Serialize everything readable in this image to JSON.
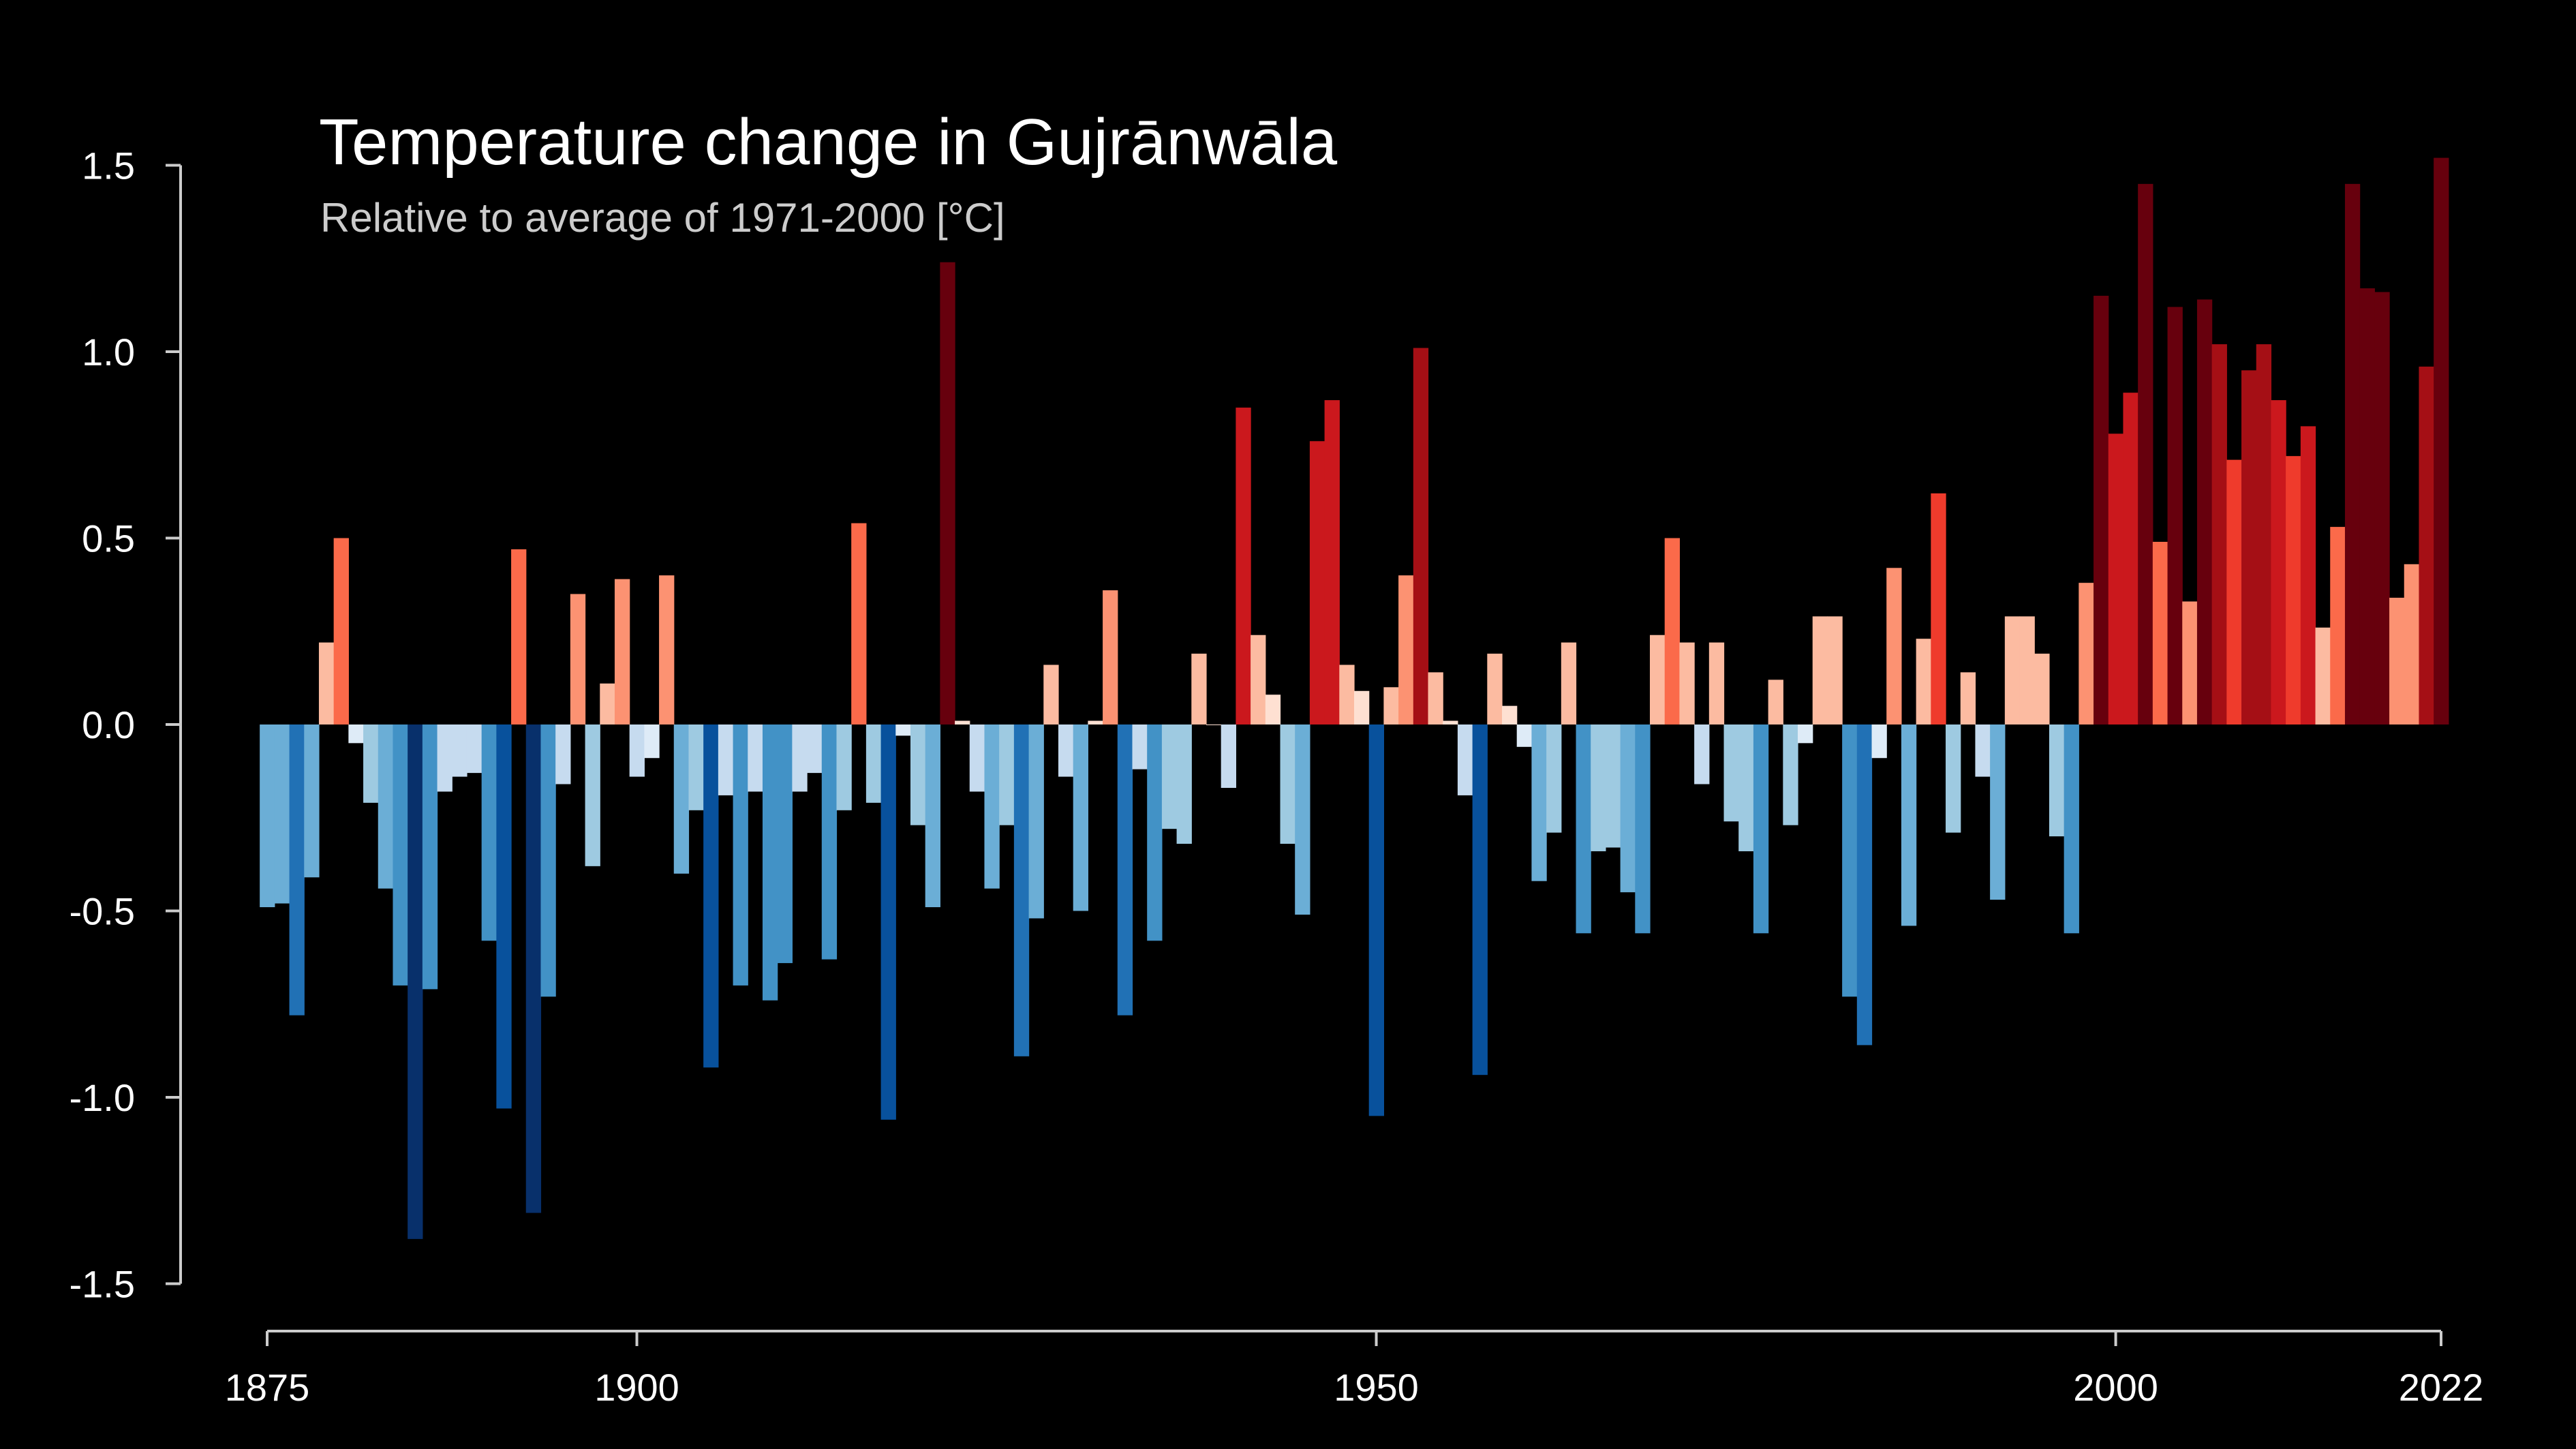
{
  "chart_data": {
    "type": "bar",
    "title": "Temperature change in Gujrānwāla",
    "subtitle": "Relative to average of 1971-2000  [°C]",
    "xlabel": "",
    "ylabel": "",
    "x_start": 1875,
    "x_end": 2022,
    "ylim": [
      -1.5,
      1.5
    ],
    "yticks": [
      -1.5,
      -1.0,
      -0.5,
      0.0,
      0.5,
      1.0,
      1.5
    ],
    "ytick_labels": [
      "-1.5",
      "-1.0",
      "-0.5",
      "0.0",
      "0.5",
      "1.0",
      "1.5"
    ],
    "xticks": [
      1875,
      1900,
      1950,
      2000,
      2022
    ],
    "xtick_labels": [
      "1875",
      "1900",
      "1950",
      "2000",
      "2022"
    ],
    "grid": false,
    "legend": "none",
    "colormap": "blue-white-red diverging (cold = dark blue, warm = dark red)",
    "colors": {
      "background": "#000000",
      "axis": "#cccccc",
      "text": "#ffffff",
      "subtitle": "#cccccc",
      "blues": [
        "#08306b",
        "#08519c",
        "#2171b5",
        "#4292c6",
        "#6baed6",
        "#9ecae1",
        "#c6dbef",
        "#deebf7"
      ],
      "reds": [
        "#fee0d2",
        "#fcbba1",
        "#fc9272",
        "#fb6a4a",
        "#ef3b2c",
        "#cb181d",
        "#a50f15",
        "#67000d"
      ]
    },
    "series": [
      {
        "x": [
          1875,
          1876,
          1877,
          1878,
          1879,
          1880,
          1881,
          1882,
          1883,
          1884,
          1885,
          1886,
          1887,
          1888,
          1889,
          1890,
          1891,
          1892,
          1893,
          1894,
          1895,
          1896,
          1897,
          1898,
          1899,
          1900,
          1901,
          1902,
          1903,
          1904,
          1905,
          1906,
          1907,
          1908,
          1909,
          1910,
          1911,
          1912,
          1913,
          1914,
          1915,
          1916,
          1917,
          1918,
          1919,
          1920,
          1921,
          1922,
          1923,
          1924,
          1925,
          1926,
          1927,
          1928,
          1929,
          1930,
          1931,
          1932,
          1933,
          1934,
          1935,
          1936,
          1937,
          1938,
          1939,
          1940,
          1941,
          1942,
          1943,
          1944,
          1945,
          1946,
          1947,
          1948,
          1949,
          1950,
          1951,
          1952,
          1953,
          1954,
          1955,
          1956,
          1957,
          1958,
          1959,
          1960,
          1961,
          1962,
          1963,
          1964,
          1965,
          1966,
          1967,
          1968,
          1969,
          1970,
          1971,
          1972,
          1973,
          1974,
          1975,
          1976,
          1977,
          1978,
          1979,
          1980,
          1981,
          1982,
          1983,
          1984,
          1985,
          1986,
          1987,
          1988,
          1989,
          1990,
          1991,
          1992,
          1993,
          1994,
          1995,
          1996,
          1997,
          1998,
          1999,
          2000,
          2001,
          2002,
          2003,
          2004,
          2005,
          2006,
          2007,
          2008,
          2009,
          2010,
          2011,
          2012,
          2013,
          2014,
          2015,
          2016,
          2017,
          2018,
          2019,
          2020,
          2021,
          2022
        ],
        "values": [
          -0.49,
          -0.48,
          -0.78,
          -0.41,
          0.22,
          0.5,
          -0.05,
          -0.21,
          -0.44,
          -0.7,
          -1.38,
          -0.71,
          -0.18,
          -0.14,
          -0.13,
          -0.58,
          -1.03,
          0.47,
          -1.31,
          -0.73,
          -0.16,
          0.35,
          -0.38,
          0.11,
          0.39,
          -0.14,
          -0.09,
          0.4,
          -0.4,
          -0.23,
          -0.92,
          -0.19,
          -0.7,
          -0.18,
          -0.74,
          -0.64,
          -0.18,
          -0.13,
          -0.63,
          -0.23,
          0.54,
          -0.21,
          -1.06,
          -0.03,
          -0.27,
          -0.49,
          1.24,
          0.01,
          -0.18,
          -0.44,
          -0.27,
          -0.89,
          -0.52,
          0.16,
          -0.14,
          -0.5,
          0.01,
          0.36,
          -0.78,
          -0.12,
          -0.58,
          -0.28,
          -0.32,
          0.19,
          0.0,
          -0.17,
          0.85,
          0.24,
          0.08,
          -0.32,
          -0.51,
          0.76,
          0.87,
          0.16,
          0.09,
          -1.05,
          0.1,
          0.4,
          1.01,
          0.14,
          0.01,
          -0.19,
          -0.94,
          0.19,
          0.05,
          -0.06,
          -0.42,
          -0.29,
          0.22,
          -0.56,
          -0.34,
          -0.33,
          -0.45,
          -0.56,
          0.24,
          0.5,
          0.22,
          -0.16,
          0.22,
          -0.26,
          -0.34,
          -0.56,
          0.12,
          -0.27,
          -0.05,
          0.29,
          0.29,
          -0.73,
          -0.86,
          -0.09,
          0.42,
          -0.54,
          0.23,
          0.62,
          -0.29,
          0.14,
          -0.14,
          -0.47,
          0.29,
          0.29,
          0.19,
          -0.3,
          -0.56,
          0.38,
          1.15,
          0.78,
          0.89,
          1.45,
          0.49,
          1.12,
          0.33,
          1.14,
          1.02,
          0.71,
          0.95,
          1.02,
          0.87,
          0.72,
          0.8,
          0.26,
          0.53,
          1.45,
          1.17,
          1.16,
          0.34,
          0.43,
          0.96,
          1.52
        ]
      }
    ]
  }
}
